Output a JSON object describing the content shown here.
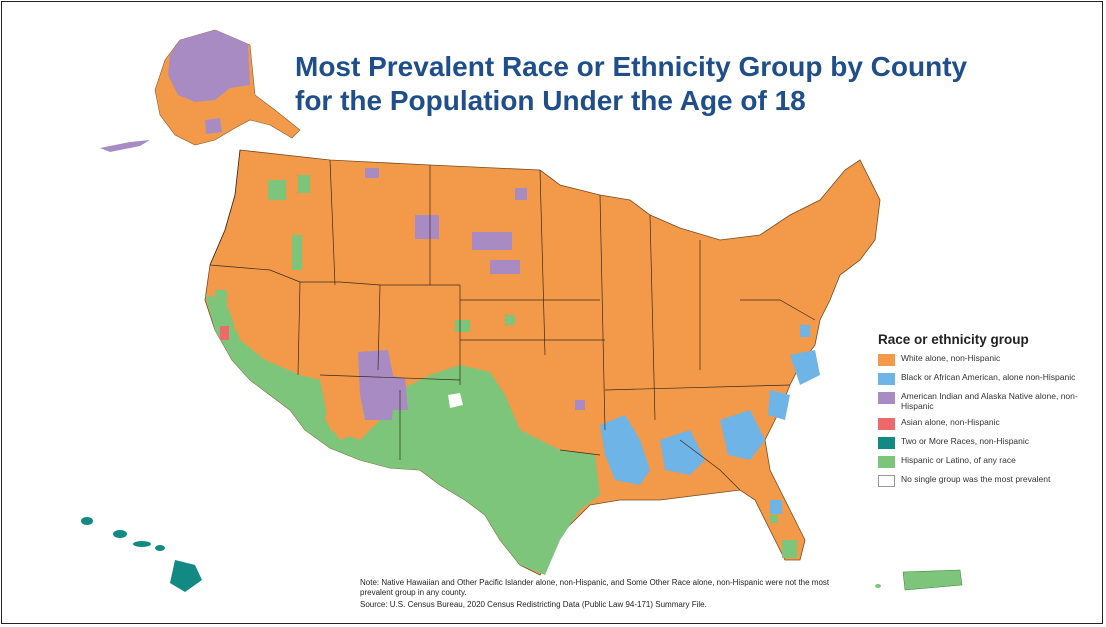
{
  "title": {
    "line1": "Most Prevalent Race or Ethnicity Group by County",
    "line2": "for the Population Under the Age of 18"
  },
  "legend": {
    "title": "Race or ethnicity group",
    "items": [
      {
        "label": "White alone, non-Hispanic",
        "color": "#f29a4a"
      },
      {
        "label": "Black or African American, alone non-Hispanic",
        "color": "#6fb4e6"
      },
      {
        "label": "American Indian and Alaska Native alone, non-Hispanic",
        "color": "#a98bc4"
      },
      {
        "label": "Asian alone, non-Hispanic",
        "color": "#ee6a6a"
      },
      {
        "label": "Two or More Races, non-Hispanic",
        "color": "#128a83"
      },
      {
        "label": "Hispanic or Latino, of any race",
        "color": "#7cc57a"
      },
      {
        "label": "No single group was the most prevalent",
        "color": "#ffffff"
      }
    ]
  },
  "note": "Note: Native Hawaiian and Other Pacific Islander alone, non-Hispanic, and Some Other Race alone, non-Hispanic were not the most prevalent group in any county.",
  "source": "Source: U.S. Census Bureau, 2020 Census Redistricting Data (Public Law 94-171) Summary File.",
  "colors": {
    "white": "#f29a4a",
    "black": "#6fb4e6",
    "aian": "#a98bc4",
    "asian": "#ee6a6a",
    "two_or_more": "#128a83",
    "hispanic": "#7cc57a",
    "none": "#ffffff",
    "title": "#1f4e8c"
  }
}
